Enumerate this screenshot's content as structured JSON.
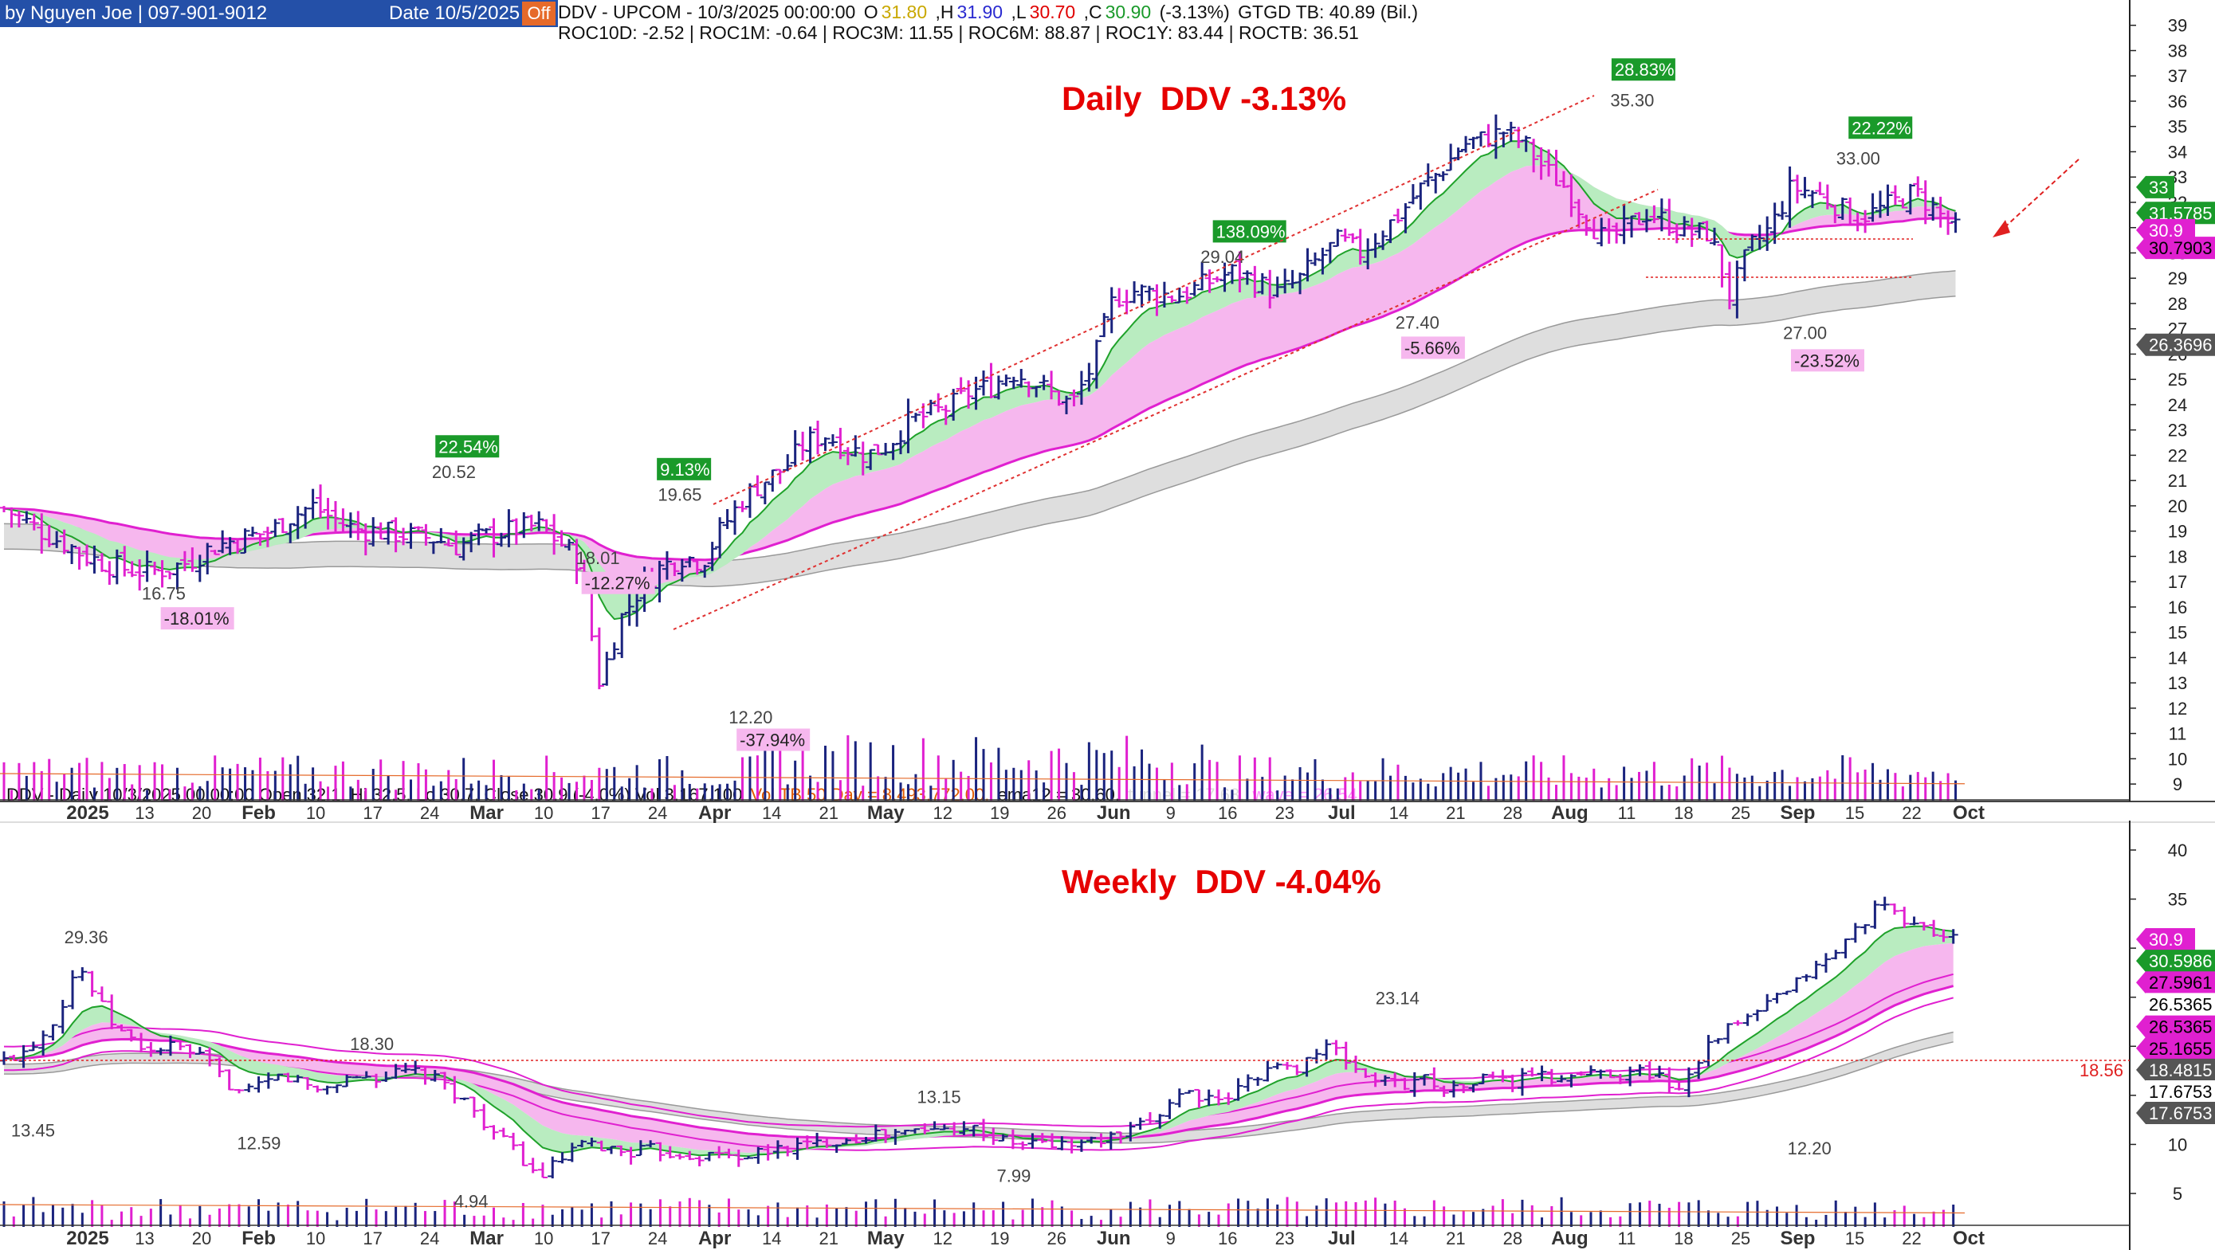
{
  "header": {
    "author": "by Nguyen Joe | 097-901-9012",
    "date": "Date 10/5/2025",
    "off_label": "Off"
  },
  "daily_info": {
    "symbol_line": "DDV - UPCOM -  10/3/2025 00:00:00",
    "o_label": "O",
    "o_val": "31.80",
    "h_label": ",H",
    "h_val": "31.90",
    "l_label": ",L",
    "l_val": "30.70",
    "c_label": ",C",
    "c_val": "30.90",
    "chg": "(-3.13%)",
    "gtgd": "GTGD TB: 40.89 (Bil.)",
    "roc_line": "ROC10D:  -2.52 |  ROC1M:  -0.64 |  ROC3M:  11.55 |  ROC6M:  88.87 |  ROC1Y:  83.44 |  ROCTB:  36.51"
  },
  "weekly_info": {
    "line_a": "DDV - Daily 10/3/2025 00:00:00 Open 32.1, Hi 32.5, Lo 30.7, Close 30.9 (-4.0%) Vol 3,167,100",
    "line_b": "Vol TB 50 Day = 8,493,772.00,",
    "line_c": "ema12 = 30.60,",
    "line_d": "tunnel = 17.68,",
    "line_e": "wave = 26.54"
  },
  "chart_data": [
    {
      "type": "candlestick",
      "title": "Daily  DDV -3.13%",
      "ylim": [
        8.5,
        40
      ],
      "y_ticks": [
        9,
        10,
        11,
        12,
        13,
        14,
        15,
        16,
        17,
        18,
        19,
        20,
        21,
        22,
        23,
        24,
        25,
        26,
        27,
        28,
        29,
        30,
        31,
        32,
        33,
        34,
        35,
        36,
        37,
        38,
        39
      ],
      "x_tick_labels": [
        "2025",
        "13",
        "20",
        "Feb",
        "10",
        "17",
        "24",
        "Mar",
        "10",
        "17",
        "24",
        "Apr",
        "14",
        "21",
        "May",
        "12",
        "19",
        "26",
        "Jun",
        "9",
        "16",
        "23",
        "Jul",
        "14",
        "21",
        "28",
        "Aug",
        "11",
        "18",
        "25",
        "Sep",
        "15",
        "22",
        "Oct"
      ],
      "close_path": [
        19.9,
        19.4,
        18.9,
        18.5,
        18.0,
        17.7,
        17.5,
        17.4,
        17.5,
        17.8,
        18.3,
        18.6,
        18.8,
        19.0,
        19.6,
        20.0,
        19.5,
        19.1,
        19.0,
        18.9,
        18.8,
        18.7,
        18.4,
        18.7,
        18.9,
        19.1,
        19.2,
        18.6,
        17.8,
        13.0,
        15.5,
        16.8,
        17.6,
        18.0,
        17.8,
        19.2,
        20.3,
        21.0,
        21.5,
        22.5,
        22.8,
        22.3,
        22.0,
        22.4,
        23.3,
        23.6,
        23.9,
        24.5,
        24.7,
        25.3,
        25.0,
        24.4,
        24.0,
        25.6,
        28.2,
        28.5,
        28.4,
        28.3,
        28.6,
        29.0,
        29.3,
        28.8,
        28.4,
        28.9,
        29.8,
        30.5,
        30.0,
        30.8,
        31.6,
        32.6,
        33.3,
        34.3,
        34.5,
        34.8,
        34.3,
        33.3,
        32.6,
        31.4,
        30.4,
        31.0,
        31.6,
        31.2,
        30.8,
        30.8,
        28.3,
        30.2,
        31.0,
        32.6,
        32.4,
        32.0,
        31.4,
        31.6,
        32.0,
        32.4,
        31.7,
        30.9
      ],
      "price_labels": [
        {
          "text": "16.75",
          "x": 0.064,
          "v": 16.3
        },
        {
          "text": "20.52",
          "x": 0.195,
          "v": 21.1
        },
        {
          "text": "18.01",
          "x": 0.26,
          "v": 17.7
        },
        {
          "text": "19.65",
          "x": 0.297,
          "v": 20.2
        },
        {
          "text": "12.20",
          "x": 0.329,
          "v": 11.4
        },
        {
          "text": "29.04",
          "x": 0.542,
          "v": 29.6
        },
        {
          "text": "27.40",
          "x": 0.63,
          "v": 27.0
        },
        {
          "text": "35.30",
          "x": 0.727,
          "v": 35.8
        },
        {
          "text": "27.00",
          "x": 0.805,
          "v": 26.6
        },
        {
          "text": "33.00",
          "x": 0.829,
          "v": 33.5
        }
      ],
      "percent_labels": [
        {
          "text": "-18.01%",
          "x": 0.074,
          "v": 15.3,
          "kind": "neg"
        },
        {
          "text": "22.54%",
          "x": 0.198,
          "v": 22.1,
          "kind": "pos"
        },
        {
          "text": "-12.27%",
          "x": 0.264,
          "v": 16.7,
          "kind": "neg"
        },
        {
          "text": "9.13%",
          "x": 0.298,
          "v": 21.2,
          "kind": "pos"
        },
        {
          "text": "-37.94%",
          "x": 0.334,
          "v": 10.5,
          "kind": "neg"
        },
        {
          "text": "138.09%",
          "x": 0.549,
          "v": 30.6,
          "kind": "pos"
        },
        {
          "text": "-5.66%",
          "x": 0.634,
          "v": 26.0,
          "kind": "neg"
        },
        {
          "text": "28.83%",
          "x": 0.729,
          "v": 37.0,
          "kind": "pos"
        },
        {
          "text": "-23.52%",
          "x": 0.81,
          "v": 25.5,
          "kind": "neg"
        },
        {
          "text": "22.22%",
          "x": 0.836,
          "v": 34.7,
          "kind": "pos"
        }
      ],
      "axis_tags": [
        {
          "text": "33",
          "v": 32.6,
          "bg": "#1a9a2a",
          "fg": "#ffffff"
        },
        {
          "text": "31.5785",
          "v": 31.58,
          "bg": "#1a9a2a",
          "fg": "#ffffff"
        },
        {
          "text": "30.9",
          "v": 30.9,
          "bg": "#e020d0",
          "fg": "#ffffff"
        },
        {
          "text": "30.7903",
          "v": 30.2,
          "bg": "#e020d0",
          "fg": "#000000"
        },
        {
          "text": "26.3696",
          "v": 26.37,
          "bg": "#555555",
          "fg": "#ffffff"
        }
      ]
    },
    {
      "type": "candlestick",
      "title": "Weekly  DDV -4.04%",
      "ylim": [
        2,
        43
      ],
      "y_ticks": [
        5,
        10,
        15,
        20,
        25,
        30,
        35,
        40
      ],
      "x_tick_labels": [
        "2025",
        "13",
        "20",
        "Feb",
        "10",
        "17",
        "24",
        "Mar",
        "10",
        "17",
        "24",
        "Apr",
        "14",
        "21",
        "May",
        "12",
        "19",
        "26",
        "Jun",
        "9",
        "16",
        "23",
        "Jul",
        "14",
        "21",
        "28",
        "Aug",
        "11",
        "18",
        "25",
        "Sep",
        "15",
        "22",
        "Oct"
      ],
      "close_path": [
        18.5,
        19.5,
        21.0,
        23.5,
        28.5,
        25.0,
        22.0,
        20.5,
        19.5,
        20.0,
        19.5,
        18.5,
        16.5,
        15.0,
        16.0,
        17.0,
        16.5,
        15.5,
        16.2,
        17.0,
        16.8,
        17.0,
        17.5,
        17.0,
        16.0,
        14.5,
        12.5,
        10.5,
        9.0,
        6.5,
        8.0,
        9.5,
        10.0,
        9.5,
        9.2,
        9.5,
        9.2,
        9.0,
        8.8,
        9.0,
        8.8,
        9.0,
        9.5,
        9.8,
        10.0,
        10.5,
        10.5,
        11.0,
        11.0,
        11.2,
        11.5,
        11.5,
        12.0,
        11.5,
        10.5,
        10.0,
        10.2,
        10.0,
        10.0,
        10.3,
        10.5,
        11.0,
        12.0,
        13.5,
        15.5,
        15.0,
        14.0,
        15.5,
        17.0,
        18.0,
        17.5,
        19.0,
        20.0,
        18.5,
        17.0,
        16.5,
        16.0,
        17.0,
        16.0,
        15.5,
        16.5,
        17.0,
        16.0,
        17.5,
        16.5,
        17.0,
        17.2,
        17.5,
        17.0,
        17.5,
        17.0,
        15.5,
        18.5,
        21.0,
        22.0,
        23.0,
        24.5,
        25.5,
        27.5,
        28.5,
        30.5,
        32.5,
        34.5,
        33.0,
        32.5,
        31.5,
        30.9
      ],
      "price_labels": [
        {
          "text": "29.36",
          "x": 0.029,
          "v": 30.5
        },
        {
          "text": "18.30",
          "x": 0.158,
          "v": 19.6
        },
        {
          "text": "13.45",
          "x": 0.005,
          "v": 10.8
        },
        {
          "text": "12.59",
          "x": 0.107,
          "v": 9.5
        },
        {
          "text": "4.94",
          "x": 0.205,
          "v": 3.6
        },
        {
          "text": "13.15",
          "x": 0.414,
          "v": 14.2
        },
        {
          "text": "7.99",
          "x": 0.45,
          "v": 6.2
        },
        {
          "text": "23.14",
          "x": 0.621,
          "v": 24.3
        },
        {
          "text": "12.20",
          "x": 0.807,
          "v": 9.0
        }
      ],
      "axis_tags": [
        {
          "text": "30.9",
          "v": 30.9,
          "bg": "#e020d0",
          "fg": "#ffffff"
        },
        {
          "text": "30.5986",
          "v": 28.7,
          "bg": "#1a9a2a",
          "fg": "#ffffff"
        },
        {
          "text": "27.5961",
          "v": 26.5,
          "bg": "#e020d0",
          "fg": "#000000"
        },
        {
          "text": "26.5365",
          "v": 24.3,
          "bg": "#ffffff",
          "fg": "#000000"
        },
        {
          "text": "26.5365",
          "v": 22.0,
          "bg": "#e020d0",
          "fg": "#000000"
        },
        {
          "text": "25.1655",
          "v": 19.8,
          "bg": "#e020d0",
          "fg": "#000000"
        },
        {
          "text": "18.4815",
          "v": 17.6,
          "bg": "#555555",
          "fg": "#ffffff"
        },
        {
          "text": "17.6753",
          "v": 15.4,
          "bg": "#ffffff",
          "fg": "#000000"
        },
        {
          "text": "17.6753",
          "v": 13.2,
          "bg": "#555555",
          "fg": "#ffffff"
        }
      ],
      "hline": {
        "text": "18.56",
        "v": 18.56
      }
    }
  ],
  "colors": {
    "up": "#1a237e",
    "down": "#e020d0",
    "ema_green": "#1fa22a",
    "ema_band_green": "#b9ecc0",
    "ema_band_pink": "#f6b7ee",
    "pink_line": "#e020d0",
    "gray_band": "#dedede",
    "channel": "#e03030",
    "pos_bg": "#1a9a2a",
    "neg_bg": "#f6b7ee"
  }
}
